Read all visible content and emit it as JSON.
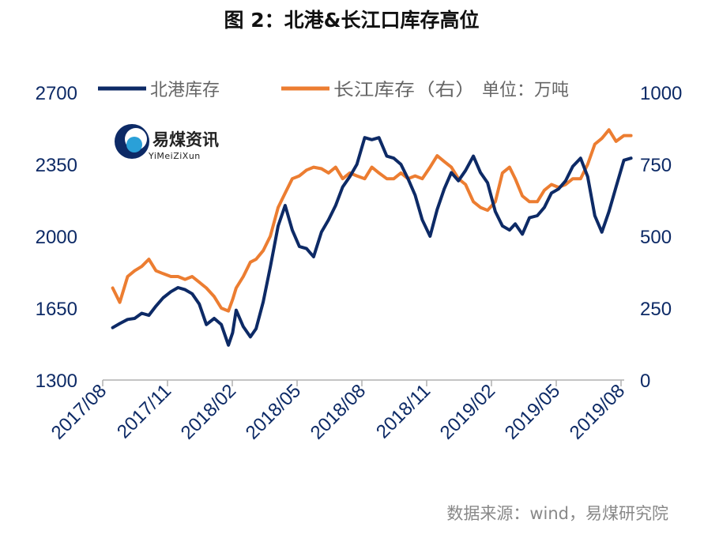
{
  "chart_data": {
    "type": "line",
    "title": "图 2：北港&长江口库存高位",
    "unit_note": "单位：万吨",
    "source": "数据来源：wind，易煤研究院",
    "watermark": {
      "name": "易煤资讯",
      "sub": "YiMeiZiXun"
    },
    "x_ticks": [
      "2017/08",
      "2017/11",
      "2018/02",
      "2018/05",
      "2018/08",
      "2018/11",
      "2019/02",
      "2019/05",
      "2019/08"
    ],
    "y_left": {
      "ticks": [
        "2700",
        "2350",
        "2000",
        "1650",
        "1300"
      ],
      "min": 1300,
      "max": 2700
    },
    "y_right": {
      "ticks": [
        "1000",
        "750",
        "500",
        "250",
        "0"
      ],
      "min": 0,
      "max": 1000
    },
    "colors": {
      "north": "#0d2a66",
      "yangtze": "#ec7d31",
      "axis_text": "#0d2a66",
      "gray_text": "#666666"
    },
    "grid": false,
    "legend_position": "top",
    "series": [
      {
        "name": "北港库存",
        "axis": "left",
        "x": [
          "2017-08-15",
          "2017-08-25",
          "2017-09-05",
          "2017-09-15",
          "2017-09-25",
          "2017-10-05",
          "2017-10-15",
          "2017-10-25",
          "2017-11-05",
          "2017-11-15",
          "2017-11-25",
          "2017-12-05",
          "2017-12-15",
          "2017-12-25",
          "2018-01-05",
          "2018-01-15",
          "2018-01-25",
          "2018-01-31",
          "2018-02-05",
          "2018-02-15",
          "2018-02-25",
          "2018-03-05",
          "2018-03-15",
          "2018-03-25",
          "2018-04-05",
          "2018-04-15",
          "2018-04-25",
          "2018-05-05",
          "2018-05-15",
          "2018-05-25",
          "2018-06-05",
          "2018-06-15",
          "2018-06-25",
          "2018-07-05",
          "2018-07-15",
          "2018-07-25",
          "2018-08-05",
          "2018-08-15",
          "2018-08-25",
          "2018-09-05",
          "2018-09-15",
          "2018-09-25",
          "2018-10-05",
          "2018-10-15",
          "2018-10-25",
          "2018-11-05",
          "2018-11-15",
          "2018-11-25",
          "2018-12-05",
          "2018-12-15",
          "2018-12-25",
          "2019-01-05",
          "2019-01-15",
          "2019-01-25",
          "2019-02-05",
          "2019-02-15",
          "2019-02-25",
          "2019-03-05",
          "2019-03-15",
          "2019-03-25",
          "2019-04-05",
          "2019-04-15",
          "2019-04-25",
          "2019-05-05",
          "2019-05-15",
          "2019-05-25",
          "2019-06-05",
          "2019-06-15",
          "2019-06-25",
          "2019-07-05",
          "2019-07-15",
          "2019-07-25",
          "2019-08-05",
          "2019-08-15"
        ],
        "values": [
          1555,
          1575,
          1595,
          1600,
          1625,
          1615,
          1660,
          1700,
          1730,
          1750,
          1740,
          1720,
          1670,
          1570,
          1600,
          1570,
          1470,
          1530,
          1640,
          1560,
          1510,
          1550,
          1680,
          1850,
          2050,
          2150,
          2030,
          1950,
          1940,
          1900,
          2020,
          2080,
          2150,
          2240,
          2290,
          2350,
          2480,
          2470,
          2480,
          2390,
          2380,
          2350,
          2280,
          2200,
          2080,
          2000,
          2130,
          2230,
          2310,
          2270,
          2320,
          2390,
          2310,
          2260,
          2120,
          2050,
          2030,
          2060,
          2010,
          2090,
          2100,
          2140,
          2210,
          2230,
          2270,
          2340,
          2380,
          2290,
          2100,
          2020,
          2120,
          2240,
          2370,
          2380
        ]
      },
      {
        "name": "长江库存（右）",
        "axis": "right",
        "x": [
          "2017-08-15",
          "2017-08-25",
          "2017-09-05",
          "2017-09-15",
          "2017-09-25",
          "2017-10-05",
          "2017-10-15",
          "2017-10-25",
          "2017-11-05",
          "2017-11-15",
          "2017-11-25",
          "2017-12-05",
          "2017-12-15",
          "2017-12-25",
          "2018-01-05",
          "2018-01-15",
          "2018-01-25",
          "2018-01-31",
          "2018-02-05",
          "2018-02-15",
          "2018-02-25",
          "2018-03-05",
          "2018-03-15",
          "2018-03-25",
          "2018-04-05",
          "2018-04-15",
          "2018-04-25",
          "2018-05-05",
          "2018-05-15",
          "2018-05-25",
          "2018-06-05",
          "2018-06-15",
          "2018-06-25",
          "2018-07-05",
          "2018-07-15",
          "2018-07-25",
          "2018-08-05",
          "2018-08-15",
          "2018-08-25",
          "2018-09-05",
          "2018-09-15",
          "2018-09-25",
          "2018-10-05",
          "2018-10-15",
          "2018-10-25",
          "2018-11-05",
          "2018-11-15",
          "2018-11-25",
          "2018-12-05",
          "2018-12-15",
          "2018-12-25",
          "2019-01-05",
          "2019-01-15",
          "2019-01-25",
          "2019-02-05",
          "2019-02-15",
          "2019-02-25",
          "2019-03-05",
          "2019-03-15",
          "2019-03-25",
          "2019-04-05",
          "2019-04-15",
          "2019-04-25",
          "2019-05-05",
          "2019-05-15",
          "2019-05-25",
          "2019-06-05",
          "2019-06-15",
          "2019-06-25",
          "2019-07-05",
          "2019-07-15",
          "2019-07-25",
          "2019-08-05",
          "2019-08-15"
        ],
        "values": [
          320,
          270,
          360,
          380,
          395,
          420,
          380,
          370,
          360,
          360,
          350,
          360,
          340,
          320,
          290,
          250,
          240,
          280,
          320,
          360,
          410,
          420,
          450,
          500,
          600,
          650,
          700,
          710,
          730,
          740,
          735,
          720,
          740,
          700,
          720,
          710,
          700,
          740,
          720,
          700,
          700,
          720,
          700,
          710,
          700,
          740,
          780,
          760,
          740,
          700,
          680,
          620,
          600,
          590,
          620,
          720,
          740,
          700,
          640,
          620,
          620,
          660,
          680,
          670,
          680,
          700,
          700,
          750,
          820,
          840,
          870,
          830,
          850,
          850
        ]
      }
    ]
  }
}
